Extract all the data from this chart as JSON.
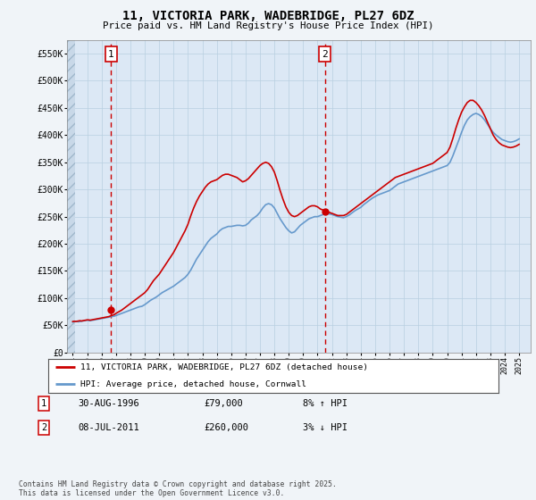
{
  "title": "11, VICTORIA PARK, WADEBRIDGE, PL27 6DZ",
  "subtitle": "Price paid vs. HM Land Registry's House Price Index (HPI)",
  "ylim": [
    0,
    575000
  ],
  "yticks": [
    0,
    50000,
    100000,
    150000,
    200000,
    250000,
    300000,
    350000,
    400000,
    450000,
    500000,
    550000
  ],
  "ytick_labels": [
    "£0",
    "£50K",
    "£100K",
    "£150K",
    "£200K",
    "£250K",
    "£300K",
    "£350K",
    "£400K",
    "£450K",
    "£500K",
    "£550K"
  ],
  "background_color": "#f0f4f8",
  "plot_bg_color": "#dce8f5",
  "grid_color": "#b8cfe0",
  "line1_color": "#cc0000",
  "line2_color": "#6699cc",
  "vline_color": "#cc0000",
  "sale1_year": 1996.66,
  "sale1_price": 79000,
  "sale1_label": "1",
  "sale2_year": 2011.52,
  "sale2_price": 260000,
  "sale2_label": "2",
  "legend_line1": "11, VICTORIA PARK, WADEBRIDGE, PL27 6DZ (detached house)",
  "legend_line2": "HPI: Average price, detached house, Cornwall",
  "sale_rows": [
    {
      "num": "1",
      "date": "30-AUG-1996",
      "price": "£79,000",
      "hpi": "8% ↑ HPI"
    },
    {
      "num": "2",
      "date": "08-JUL-2011",
      "price": "£260,000",
      "hpi": "3% ↓ HPI"
    }
  ],
  "footer": "Contains HM Land Registry data © Crown copyright and database right 2025.\nThis data is licensed under the Open Government Licence v3.0.",
  "hpi_x": [
    1994.0,
    1994.1,
    1994.2,
    1994.3,
    1994.4,
    1994.5,
    1994.6,
    1994.7,
    1994.8,
    1994.9,
    1995.0,
    1995.1,
    1995.2,
    1995.3,
    1995.4,
    1995.5,
    1995.6,
    1995.7,
    1995.8,
    1995.9,
    1996.0,
    1996.1,
    1996.2,
    1996.3,
    1996.4,
    1996.5,
    1996.6,
    1996.7,
    1996.8,
    1996.9,
    1997.0,
    1997.2,
    1997.4,
    1997.6,
    1997.8,
    1998.0,
    1998.2,
    1998.4,
    1998.6,
    1998.8,
    1999.0,
    1999.2,
    1999.4,
    1999.6,
    1999.8,
    2000.0,
    2000.2,
    2000.4,
    2000.6,
    2000.8,
    2001.0,
    2001.2,
    2001.4,
    2001.6,
    2001.8,
    2002.0,
    2002.2,
    2002.4,
    2002.6,
    2002.8,
    2003.0,
    2003.2,
    2003.4,
    2003.6,
    2003.8,
    2004.0,
    2004.2,
    2004.4,
    2004.6,
    2004.8,
    2005.0,
    2005.2,
    2005.4,
    2005.6,
    2005.8,
    2006.0,
    2006.2,
    2006.4,
    2006.6,
    2006.8,
    2007.0,
    2007.2,
    2007.4,
    2007.6,
    2007.8,
    2008.0,
    2008.2,
    2008.4,
    2008.6,
    2008.8,
    2009.0,
    2009.2,
    2009.4,
    2009.6,
    2009.8,
    2010.0,
    2010.2,
    2010.4,
    2010.6,
    2010.8,
    2011.0,
    2011.2,
    2011.4,
    2011.6,
    2011.8,
    2012.0,
    2012.2,
    2012.4,
    2012.6,
    2012.8,
    2013.0,
    2013.2,
    2013.4,
    2013.6,
    2013.8,
    2014.0,
    2014.2,
    2014.4,
    2014.6,
    2014.8,
    2015.0,
    2015.2,
    2015.4,
    2015.6,
    2015.8,
    2016.0,
    2016.2,
    2016.4,
    2016.6,
    2016.8,
    2017.0,
    2017.2,
    2017.4,
    2017.6,
    2017.8,
    2018.0,
    2018.2,
    2018.4,
    2018.6,
    2018.8,
    2019.0,
    2019.2,
    2019.4,
    2019.6,
    2019.8,
    2020.0,
    2020.2,
    2020.4,
    2020.6,
    2020.8,
    2021.0,
    2021.2,
    2021.4,
    2021.6,
    2021.8,
    2022.0,
    2022.2,
    2022.4,
    2022.6,
    2022.8,
    2023.0,
    2023.2,
    2023.4,
    2023.6,
    2023.8,
    2024.0,
    2024.2,
    2024.4,
    2024.6,
    2024.8,
    2025.0
  ],
  "hpi_y": [
    56000,
    57000,
    57500,
    57000,
    56500,
    57000,
    57500,
    58000,
    58500,
    59000,
    59500,
    59000,
    58500,
    59000,
    59500,
    60000,
    60500,
    61000,
    61500,
    62000,
    62500,
    63000,
    63500,
    64000,
    64500,
    65000,
    65500,
    66000,
    66500,
    67000,
    68000,
    70000,
    72000,
    74000,
    76000,
    78000,
    80000,
    82000,
    84000,
    85000,
    88000,
    92000,
    96000,
    99000,
    102000,
    106000,
    110000,
    113000,
    116000,
    119000,
    122000,
    126000,
    130000,
    134000,
    138000,
    144000,
    152000,
    162000,
    172000,
    180000,
    188000,
    196000,
    204000,
    210000,
    214000,
    218000,
    224000,
    228000,
    230000,
    232000,
    232000,
    233000,
    234000,
    234000,
    233000,
    234000,
    238000,
    244000,
    248000,
    252000,
    258000,
    266000,
    272000,
    274000,
    272000,
    266000,
    256000,
    246000,
    238000,
    230000,
    224000,
    220000,
    222000,
    228000,
    234000,
    238000,
    242000,
    246000,
    248000,
    250000,
    250000,
    252000,
    254000,
    256000,
    255000,
    254000,
    252000,
    250000,
    249000,
    248000,
    250000,
    253000,
    257000,
    261000,
    264000,
    267000,
    272000,
    276000,
    280000,
    284000,
    287000,
    290000,
    292000,
    294000,
    296000,
    298000,
    302000,
    306000,
    310000,
    312000,
    314000,
    316000,
    318000,
    320000,
    322000,
    324000,
    326000,
    328000,
    330000,
    332000,
    334000,
    336000,
    338000,
    340000,
    342000,
    344000,
    350000,
    362000,
    376000,
    390000,
    405000,
    418000,
    428000,
    434000,
    438000,
    440000,
    438000,
    434000,
    428000,
    420000,
    412000,
    405000,
    400000,
    396000,
    392000,
    390000,
    388000,
    387000,
    388000,
    390000,
    393000
  ],
  "price_x": [
    1994.0,
    1994.1,
    1994.2,
    1994.3,
    1994.4,
    1994.5,
    1994.6,
    1994.7,
    1994.8,
    1994.9,
    1995.0,
    1995.1,
    1995.2,
    1995.3,
    1995.4,
    1995.5,
    1995.6,
    1995.7,
    1995.8,
    1995.9,
    1996.0,
    1996.1,
    1996.2,
    1996.3,
    1996.4,
    1996.5,
    1996.6,
    1996.7,
    1996.8,
    1996.9,
    1997.0,
    1997.2,
    1997.4,
    1997.6,
    1997.8,
    1998.0,
    1998.2,
    1998.4,
    1998.6,
    1998.8,
    1999.0,
    1999.2,
    1999.4,
    1999.6,
    1999.8,
    2000.0,
    2000.2,
    2000.4,
    2000.6,
    2000.8,
    2001.0,
    2001.2,
    2001.4,
    2001.6,
    2001.8,
    2002.0,
    2002.2,
    2002.4,
    2002.6,
    2002.8,
    2003.0,
    2003.2,
    2003.4,
    2003.6,
    2003.8,
    2004.0,
    2004.2,
    2004.4,
    2004.6,
    2004.8,
    2005.0,
    2005.2,
    2005.4,
    2005.6,
    2005.8,
    2006.0,
    2006.2,
    2006.4,
    2006.6,
    2006.8,
    2007.0,
    2007.2,
    2007.4,
    2007.6,
    2007.8,
    2008.0,
    2008.2,
    2008.4,
    2008.6,
    2008.8,
    2009.0,
    2009.2,
    2009.4,
    2009.6,
    2009.8,
    2010.0,
    2010.2,
    2010.4,
    2010.6,
    2010.8,
    2011.0,
    2011.2,
    2011.4,
    2011.6,
    2011.8,
    2012.0,
    2012.2,
    2012.4,
    2012.6,
    2012.8,
    2013.0,
    2013.2,
    2013.4,
    2013.6,
    2013.8,
    2014.0,
    2014.2,
    2014.4,
    2014.6,
    2014.8,
    2015.0,
    2015.2,
    2015.4,
    2015.6,
    2015.8,
    2016.0,
    2016.2,
    2016.4,
    2016.6,
    2016.8,
    2017.0,
    2017.2,
    2017.4,
    2017.6,
    2017.8,
    2018.0,
    2018.2,
    2018.4,
    2018.6,
    2018.8,
    2019.0,
    2019.2,
    2019.4,
    2019.6,
    2019.8,
    2020.0,
    2020.2,
    2020.4,
    2020.6,
    2020.8,
    2021.0,
    2021.2,
    2021.4,
    2021.6,
    2021.8,
    2022.0,
    2022.2,
    2022.4,
    2022.6,
    2022.8,
    2023.0,
    2023.2,
    2023.4,
    2023.6,
    2023.8,
    2024.0,
    2024.2,
    2024.4,
    2024.6,
    2024.8,
    2025.0
  ],
  "price_y": [
    57000,
    57500,
    57000,
    57500,
    58000,
    58500,
    58000,
    58500,
    59000,
    59500,
    60000,
    60000,
    59500,
    60000,
    60500,
    61000,
    61500,
    62000,
    62500,
    63000,
    63500,
    64000,
    64500,
    65000,
    65500,
    66000,
    67000,
    68000,
    69000,
    70000,
    72000,
    75000,
    78000,
    82000,
    86000,
    90000,
    94000,
    98000,
    102000,
    106000,
    110000,
    116000,
    124000,
    132000,
    138000,
    144000,
    152000,
    160000,
    168000,
    176000,
    184000,
    194000,
    204000,
    214000,
    224000,
    236000,
    252000,
    266000,
    278000,
    288000,
    296000,
    304000,
    310000,
    314000,
    316000,
    318000,
    322000,
    326000,
    328000,
    328000,
    326000,
    324000,
    322000,
    318000,
    314000,
    316000,
    320000,
    326000,
    332000,
    338000,
    344000,
    348000,
    350000,
    348000,
    342000,
    332000,
    316000,
    298000,
    282000,
    268000,
    258000,
    252000,
    250000,
    252000,
    256000,
    260000,
    264000,
    268000,
    270000,
    270000,
    268000,
    264000,
    262000,
    260000,
    258000,
    256000,
    254000,
    252000,
    252000,
    252000,
    254000,
    258000,
    262000,
    266000,
    270000,
    274000,
    278000,
    282000,
    286000,
    290000,
    294000,
    298000,
    302000,
    306000,
    310000,
    314000,
    318000,
    322000,
    324000,
    326000,
    328000,
    330000,
    332000,
    334000,
    336000,
    338000,
    340000,
    342000,
    344000,
    346000,
    348000,
    352000,
    356000,
    360000,
    364000,
    368000,
    378000,
    394000,
    412000,
    428000,
    442000,
    452000,
    460000,
    464000,
    464000,
    460000,
    454000,
    446000,
    436000,
    424000,
    412000,
    400000,
    392000,
    386000,
    382000,
    380000,
    378000,
    377000,
    378000,
    380000,
    383000
  ]
}
